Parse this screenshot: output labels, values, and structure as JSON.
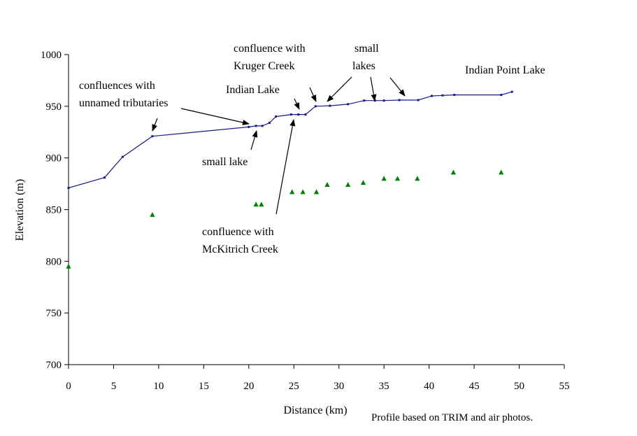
{
  "chart_data": {
    "type": "line",
    "xlabel": "Distance (km)",
    "ylabel": "Elevation (m)",
    "xlim": [
      0,
      55
    ],
    "ylim": [
      700,
      1000
    ],
    "xticks": [
      0,
      5,
      10,
      15,
      20,
      25,
      30,
      35,
      40,
      45,
      50,
      55
    ],
    "yticks": [
      700,
      750,
      800,
      850,
      900,
      950,
      1000
    ],
    "grid": false,
    "legend": "none",
    "series": [
      {
        "style": "line",
        "color": "#1a1a8c",
        "points": [
          [
            0,
            871
          ],
          [
            4,
            881
          ],
          [
            6,
            901
          ],
          [
            9.3,
            921
          ],
          [
            20,
            930
          ],
          [
            20.8,
            931
          ],
          [
            21.5,
            931
          ],
          [
            22.3,
            934
          ],
          [
            23,
            940
          ],
          [
            24.7,
            942
          ],
          [
            25.5,
            942
          ],
          [
            26.3,
            942
          ],
          [
            27.4,
            950
          ],
          [
            29,
            950.5
          ],
          [
            31,
            952
          ],
          [
            32.8,
            955.5
          ],
          [
            34,
            955.5
          ],
          [
            35,
            955.5
          ],
          [
            36.7,
            956
          ],
          [
            38.8,
            956
          ],
          [
            40.3,
            960
          ],
          [
            41.5,
            960.5
          ],
          [
            42.8,
            961
          ],
          [
            48,
            961
          ],
          [
            49.2,
            964
          ]
        ]
      },
      {
        "style": "markers",
        "marker": "triangle",
        "color": "#008000",
        "points": [
          [
            0,
            795
          ],
          [
            9.3,
            845
          ],
          [
            20.8,
            855
          ],
          [
            21.4,
            855
          ],
          [
            24.8,
            867
          ],
          [
            26,
            867
          ],
          [
            27.5,
            867
          ],
          [
            28.7,
            874
          ],
          [
            31,
            874
          ],
          [
            32.7,
            876
          ],
          [
            35,
            880
          ],
          [
            36.5,
            880
          ],
          [
            38.7,
            880
          ],
          [
            42.7,
            886
          ],
          [
            48,
            886
          ]
        ]
      }
    ],
    "annotations": [
      {
        "id": "confluences",
        "lines": [
          "confluences with",
          "unnamed tributaries"
        ]
      },
      {
        "id": "small-lake",
        "lines": [
          "small lake"
        ]
      },
      {
        "id": "indian-lake",
        "lines": [
          "Indian Lake"
        ]
      },
      {
        "id": "kruger",
        "lines": [
          "confluence with",
          "Kruger Creek"
        ]
      },
      {
        "id": "small-lakes",
        "lines": [
          "small",
          "lakes"
        ]
      },
      {
        "id": "indian-point",
        "lines": [
          "Indian Point Lake"
        ]
      },
      {
        "id": "mckitrich",
        "lines": [
          "confluence with",
          "McKitrich Creek"
        ]
      }
    ],
    "note": "Profile based on TRIM and air photos."
  }
}
